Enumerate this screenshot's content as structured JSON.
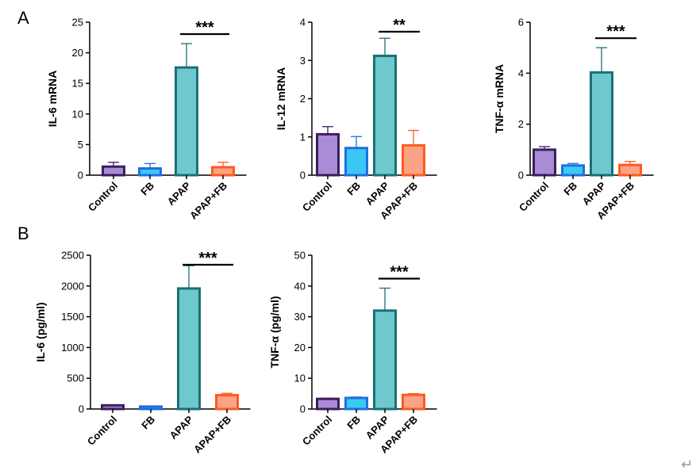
{
  "panels": [
    {
      "id": "A",
      "label": "A"
    },
    {
      "id": "B",
      "label": "B"
    }
  ],
  "colors": {
    "Control": {
      "stroke": "#3b1f5c",
      "fill": "#a98bd6"
    },
    "FB": {
      "stroke": "#1f6fe0",
      "fill": "#3cc8f5"
    },
    "APAP": {
      "stroke": "#1c6f75",
      "fill": "#6ec9cf"
    },
    "APAP+FB": {
      "stroke": "#ff5a1f",
      "fill": "#fba386"
    }
  },
  "return_icon": "↵",
  "chart_data": [
    {
      "type": "bar",
      "panel": "A",
      "ylabel": "IL-6 mRNA",
      "categories": [
        "Control",
        "FB",
        "APAP",
        "APAP+FB"
      ],
      "values": [
        1.4,
        1.1,
        17.6,
        1.3
      ],
      "errors": [
        0.7,
        0.8,
        3.9,
        0.8
      ],
      "ylim": [
        0,
        25
      ],
      "yticks": [
        0,
        5,
        10,
        15,
        20,
        25
      ],
      "significance": {
        "between": [
          "APAP",
          "APAP+FB"
        ],
        "label": "***"
      }
    },
    {
      "type": "bar",
      "panel": "A",
      "ylabel": "IL-12 mRNA",
      "categories": [
        "Control",
        "FB",
        "APAP",
        "APAP+FB"
      ],
      "values": [
        1.07,
        0.71,
        3.12,
        0.78
      ],
      "errors": [
        0.2,
        0.3,
        0.46,
        0.39
      ],
      "ylim": [
        0,
        4
      ],
      "yticks": [
        0,
        1,
        2,
        3,
        4
      ],
      "significance": {
        "between": [
          "APAP",
          "APAP+FB"
        ],
        "label": "**"
      }
    },
    {
      "type": "bar",
      "panel": "A",
      "ylabel": "TNF-α mRNA",
      "categories": [
        "Control",
        "FB",
        "APAP",
        "APAP+FB"
      ],
      "values": [
        1.0,
        0.38,
        4.03,
        0.4
      ],
      "errors": [
        0.12,
        0.08,
        0.97,
        0.14
      ],
      "ylim": [
        0,
        6
      ],
      "yticks": [
        0,
        2,
        4,
        6
      ],
      "significance": {
        "between": [
          "APAP",
          "APAP+FB"
        ],
        "label": "***"
      }
    },
    {
      "type": "bar",
      "panel": "B",
      "ylabel": "IL-6 (pg/ml)",
      "categories": [
        "Control",
        "FB",
        "APAP",
        "APAP+FB"
      ],
      "values": [
        60,
        40,
        1960,
        225
      ],
      "errors": [
        8,
        8,
        370,
        30
      ],
      "ylim": [
        0,
        2500
      ],
      "yticks": [
        0,
        500,
        1000,
        1500,
        2000,
        2500
      ],
      "significance": {
        "between": [
          "APAP",
          "APAP+FB"
        ],
        "label": "***"
      }
    },
    {
      "type": "bar",
      "panel": "B",
      "ylabel": "TNF-α (pg/ml)",
      "categories": [
        "Control",
        "FB",
        "APAP",
        "APAP+FB"
      ],
      "values": [
        3.3,
        3.6,
        32.0,
        4.6
      ],
      "errors": [
        0.2,
        0.3,
        7.3,
        0.4
      ],
      "ylim": [
        0,
        50
      ],
      "yticks": [
        0,
        10,
        20,
        30,
        40,
        50
      ],
      "significance": {
        "between": [
          "APAP",
          "APAP+FB"
        ],
        "label": "***"
      }
    }
  ]
}
